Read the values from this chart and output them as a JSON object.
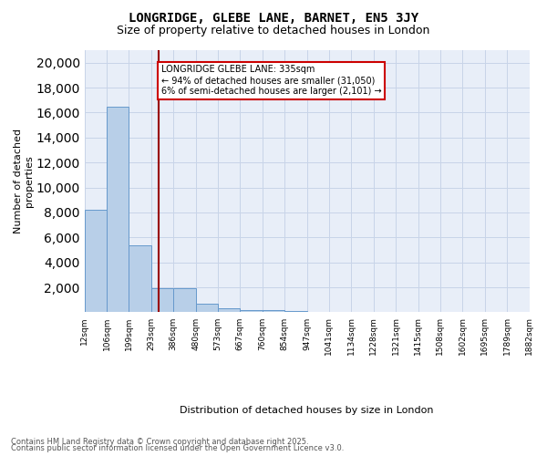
{
  "title1": "LONGRIDGE, GLEBE LANE, BARNET, EN5 3JY",
  "title2": "Size of property relative to detached houses in London",
  "xlabel": "Distribution of detached houses by size in London",
  "ylabel": "Number of detached\nproperties",
  "bar_color": "#b8cfe8",
  "bar_edge_color": "#6699cc",
  "bin_labels": [
    "12sqm",
    "106sqm",
    "199sqm",
    "293sqm",
    "386sqm",
    "480sqm",
    "573sqm",
    "667sqm",
    "760sqm",
    "854sqm",
    "947sqm",
    "1041sqm",
    "1134sqm",
    "1228sqm",
    "1321sqm",
    "1415sqm",
    "1508sqm",
    "1602sqm",
    "1695sqm",
    "1789sqm",
    "1882sqm"
  ],
  "values": [
    8200,
    16500,
    5400,
    1900,
    1900,
    700,
    300,
    200,
    150,
    100,
    50,
    30,
    20,
    15,
    10,
    8,
    5,
    5,
    3,
    2
  ],
  "vline_x": 3.35,
  "vline_color": "#990000",
  "annotation_text": "LONGRIDGE GLEBE LANE: 335sqm\n← 94% of detached houses are smaller (31,050)\n6% of semi-detached houses are larger (2,101) →",
  "annotation_box_color": "#ffffff",
  "annotation_box_edge": "#cc0000",
  "ylim": [
    0,
    21000
  ],
  "yticks": [
    0,
    2000,
    4000,
    6000,
    8000,
    10000,
    12000,
    14000,
    16000,
    18000,
    20000
  ],
  "grid_color": "#c8d4e8",
  "bg_color": "#e8eef8",
  "footer1": "Contains HM Land Registry data © Crown copyright and database right 2025.",
  "footer2": "Contains public sector information licensed under the Open Government Licence v3.0."
}
